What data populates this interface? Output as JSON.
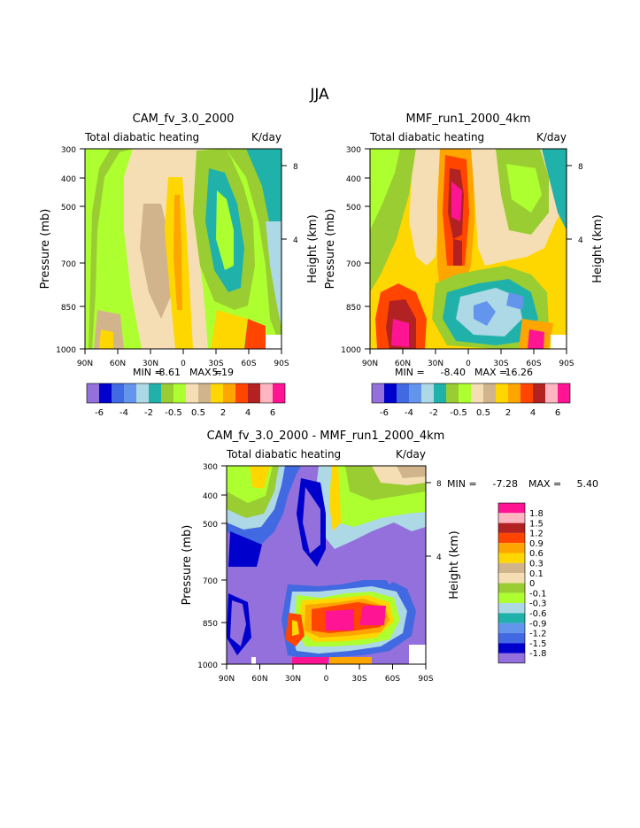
{
  "page_title": "JJA",
  "colors": {
    "palette_main": [
      "#9370db",
      "#0000cd",
      "#4169e1",
      "#6495ed",
      "#add8e6",
      "#20b2aa",
      "#9acd32",
      "#adff2f",
      "#f5deb3",
      "#d2b48c",
      "#ffd700",
      "#ffa500",
      "#ff4500",
      "#b22222",
      "#ffb6c1",
      "#ff1493"
    ],
    "palette_diff": [
      "#9370db",
      "#0000cd",
      "#4169e1",
      "#6495ed",
      "#20b2aa",
      "#add8e6",
      "#adff2f",
      "#9acd32",
      "#f5deb3",
      "#d2b48c",
      "#ffd700",
      "#ffa500",
      "#ff4500",
      "#b22222",
      "#ffb6c1",
      "#ff1493"
    ]
  },
  "chart_data": [
    {
      "type": "heatmap",
      "title": "CAM_fv_3.0_2000",
      "subtitle_left": "Total diabatic heating",
      "subtitle_right": "K/day",
      "ylabel": "Pressure (mb)",
      "ylabel_right": "Height (km)",
      "x_ticks": [
        "90N",
        "60N",
        "30N",
        "0",
        "30S",
        "60S",
        "90S"
      ],
      "y_ticks": [
        "300",
        "400",
        "500",
        "700",
        "850",
        "1000"
      ],
      "y_right_ticks": [
        "8",
        "4"
      ],
      "stats": {
        "min_label": "MIN =",
        "min": "-8.61",
        "max_label": "MAX =",
        "max": "5.19"
      },
      "colorbar_labels": [
        "-6",
        "-4",
        "-2",
        "-0.5",
        "0.5",
        "2",
        "4",
        "6"
      ]
    },
    {
      "type": "heatmap",
      "title": "MMF_run1_2000_4km",
      "subtitle_left": "Total diabatic heating",
      "subtitle_right": "K/day",
      "ylabel": "Pressure (mb)",
      "ylabel_right": "Height (km)",
      "x_ticks": [
        "90N",
        "60N",
        "30N",
        "0",
        "30S",
        "60S",
        "90S"
      ],
      "y_ticks": [
        "300",
        "400",
        "500",
        "700",
        "850",
        "1000"
      ],
      "y_right_ticks": [
        "8",
        "4"
      ],
      "stats": {
        "min_label": "MIN =",
        "min": "-8.40",
        "max_label": "MAX =",
        "max": "16.26"
      },
      "colorbar_labels": [
        "-6",
        "-4",
        "-2",
        "-0.5",
        "0.5",
        "2",
        "4",
        "6"
      ]
    },
    {
      "type": "heatmap",
      "title": "CAM_fv_3.0_2000 - MMF_run1_2000_4km",
      "subtitle_left": "Total diabatic heating",
      "subtitle_right": "K/day",
      "ylabel": "Pressure (mb)",
      "ylabel_right": "Height (km)",
      "x_ticks": [
        "90N",
        "60N",
        "30N",
        "0",
        "30S",
        "60S",
        "90S"
      ],
      "y_ticks": [
        "300",
        "400",
        "500",
        "700",
        "850",
        "1000"
      ],
      "y_right_ticks": [
        "8",
        "4"
      ],
      "stats": {
        "min_label": "MIN =",
        "min": "-7.28",
        "max_label": "MAX =",
        "max": "5.40"
      },
      "colorbar_labels": [
        "1.8",
        "1.5",
        "1.2",
        "0.9",
        "0.6",
        "0.3",
        "0.1",
        "0",
        "-0.1",
        "-0.3",
        "-0.6",
        "-0.9",
        "-1.2",
        "-1.5",
        "-1.8"
      ]
    }
  ]
}
